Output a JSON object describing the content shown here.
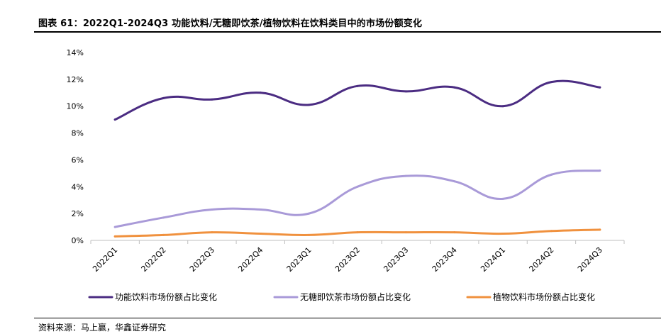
{
  "header": {
    "title": "图表 61：2022Q1-2024Q3 功能饮料/无糖即饮茶/植物饮料在饮料类目中的市场份额变化"
  },
  "footer": {
    "source": "资料来源：马上赢，华鑫证券研究"
  },
  "chart_data": {
    "type": "line",
    "categories": [
      "2022Q1",
      "2022Q2",
      "2022Q3",
      "2022Q4",
      "2023Q1",
      "2023Q2",
      "2023Q3",
      "2023Q4",
      "2024Q1",
      "2024Q2",
      "2024Q3"
    ],
    "y_ticks": [
      "0%",
      "2%",
      "4%",
      "6%",
      "8%",
      "10%",
      "12%",
      "14%"
    ],
    "ylim": [
      0,
      14
    ],
    "grid": false,
    "legend_position": "bottom",
    "series": [
      {
        "name": "功能饮料市场份额占比变化",
        "color": "#4B2C82",
        "values": [
          9.0,
          10.6,
          10.5,
          11.0,
          10.1,
          11.5,
          11.1,
          11.4,
          10.0,
          11.8,
          11.4
        ]
      },
      {
        "name": "无糖即饮茶市场份额占比变化",
        "color": "#A99AD8",
        "values": [
          1.0,
          1.7,
          2.3,
          2.3,
          2.0,
          4.0,
          4.8,
          4.4,
          3.1,
          4.9,
          5.2
        ]
      },
      {
        "name": "植物饮料市场份额占比变化",
        "color": "#F0913E",
        "values": [
          0.3,
          0.4,
          0.6,
          0.5,
          0.4,
          0.6,
          0.6,
          0.6,
          0.5,
          0.7,
          0.8
        ]
      }
    ]
  }
}
